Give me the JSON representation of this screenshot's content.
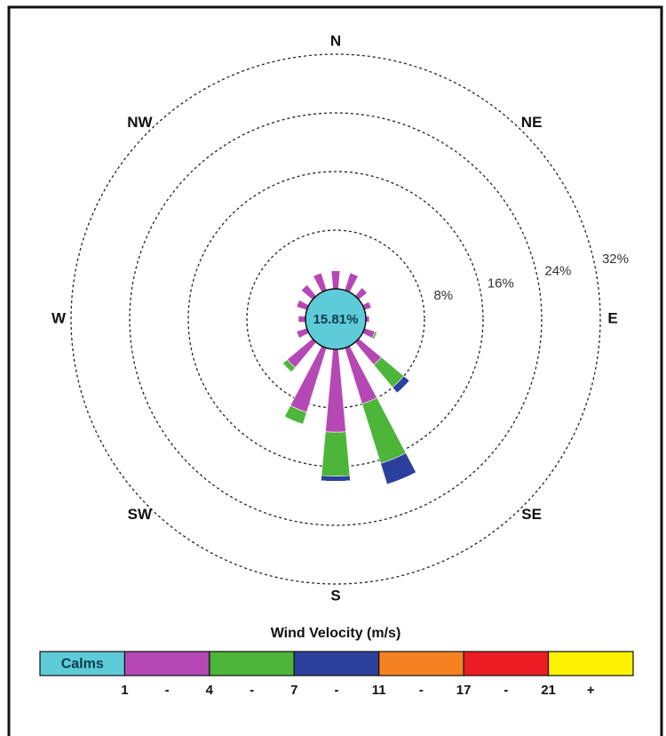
{
  "chart_data": {
    "type": "windrose",
    "categories": [
      "N",
      null,
      "NE",
      null,
      "E",
      null,
      "SE",
      null,
      "S",
      null,
      "SW",
      null,
      "W",
      null,
      "NW",
      null
    ],
    "series": [
      {
        "color": "#b648b6",
        "values": [
          2.5,
          2.5,
          1.5,
          1,
          0.5,
          1.5,
          4,
          8,
          11.3,
          9.2,
          4.5,
          1.5,
          1,
          1.5,
          2,
          2.5
        ]
      },
      {
        "color": "#4cb53a",
        "values": [
          0,
          0,
          0,
          0,
          0,
          0.3,
          4,
          8.5,
          6,
          1.7,
          0.8,
          0,
          0,
          0,
          0,
          0
        ]
      },
      {
        "color": "#2b3f9c",
        "values": [
          0,
          0,
          0,
          0,
          0,
          0,
          1,
          3,
          0.7,
          0,
          0,
          0,
          0,
          0,
          0,
          0
        ]
      },
      {
        "color": "#f58220",
        "values": [
          0,
          0,
          0,
          0,
          0,
          0,
          0,
          0,
          0,
          0,
          0,
          0,
          0,
          0,
          0,
          0
        ]
      },
      {
        "color": "#ec1c24",
        "values": [
          0,
          0,
          0,
          0,
          0,
          0,
          0,
          0,
          0,
          0,
          0,
          0,
          0,
          0,
          0,
          0
        ]
      },
      {
        "color": "#fff200",
        "values": [
          0,
          0,
          0,
          0,
          0,
          0,
          0,
          0,
          0,
          0,
          0,
          0,
          0,
          0,
          0,
          0
        ]
      }
    ],
    "calm": 15.81,
    "calm_value_label": "15.81%",
    "calm_color": "#5ecbd9",
    "rlim": [
      0,
      32
    ],
    "rticks": [
      {
        "value": 8,
        "label": "8%"
      },
      {
        "value": 16,
        "label": "16%"
      },
      {
        "value": 24,
        "label": "24%"
      },
      {
        "value": 32,
        "label": "32%"
      }
    ],
    "legend": {
      "title": "Wind Velocity (m/s)",
      "calm_label": "Calms",
      "edges": [
        1,
        4,
        7,
        11,
        17,
        21
      ],
      "separator": "-",
      "plus": "+"
    }
  }
}
